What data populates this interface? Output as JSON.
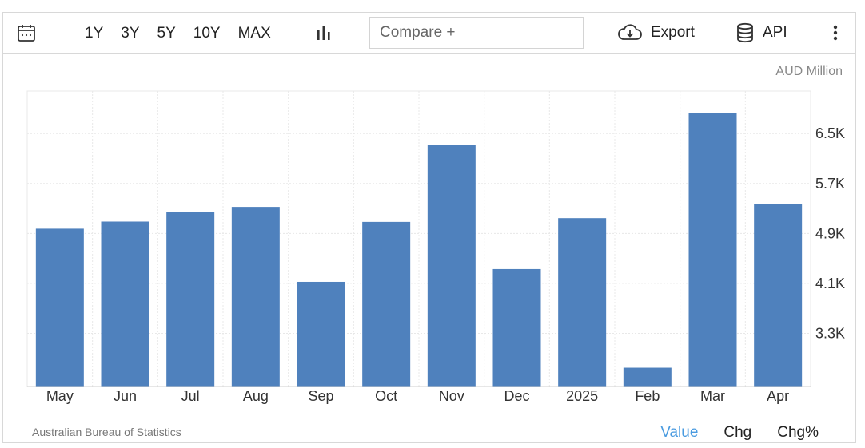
{
  "toolbar": {
    "ranges": [
      "1Y",
      "3Y",
      "5Y",
      "10Y",
      "MAX"
    ],
    "compare_placeholder": "Compare +",
    "export_label": "Export",
    "api_label": "API"
  },
  "unit_label": "AUD Million",
  "source": "Australian Bureau of Statistics",
  "footer_tabs": [
    "Value",
    "Chg",
    "Chg%"
  ],
  "active_footer_tab": "Value",
  "colors": {
    "bar": "#4f81bd",
    "active_tab": "#4a9be0",
    "grid": "#e8e8e8"
  },
  "chart_data": {
    "type": "bar",
    "categories": [
      "May",
      "Jun",
      "Jul",
      "Aug",
      "Sep",
      "Oct",
      "Nov",
      "Dec",
      "2025",
      "Feb",
      "Mar",
      "Apr"
    ],
    "values": [
      4976,
      5090,
      5245,
      5325,
      4125,
      5085,
      6320,
      4330,
      5145,
      2750,
      6830,
      5375
    ],
    "ylabel": "AUD Million",
    "ylim": [
      2450,
      7180
    ],
    "yticks": [
      3300,
      4100,
      4900,
      5700,
      6500
    ],
    "ytick_labels": [
      "3.3K",
      "4.1K",
      "4.9K",
      "5.7K",
      "6.5K"
    ],
    "axis_position": "right",
    "grid": true
  }
}
